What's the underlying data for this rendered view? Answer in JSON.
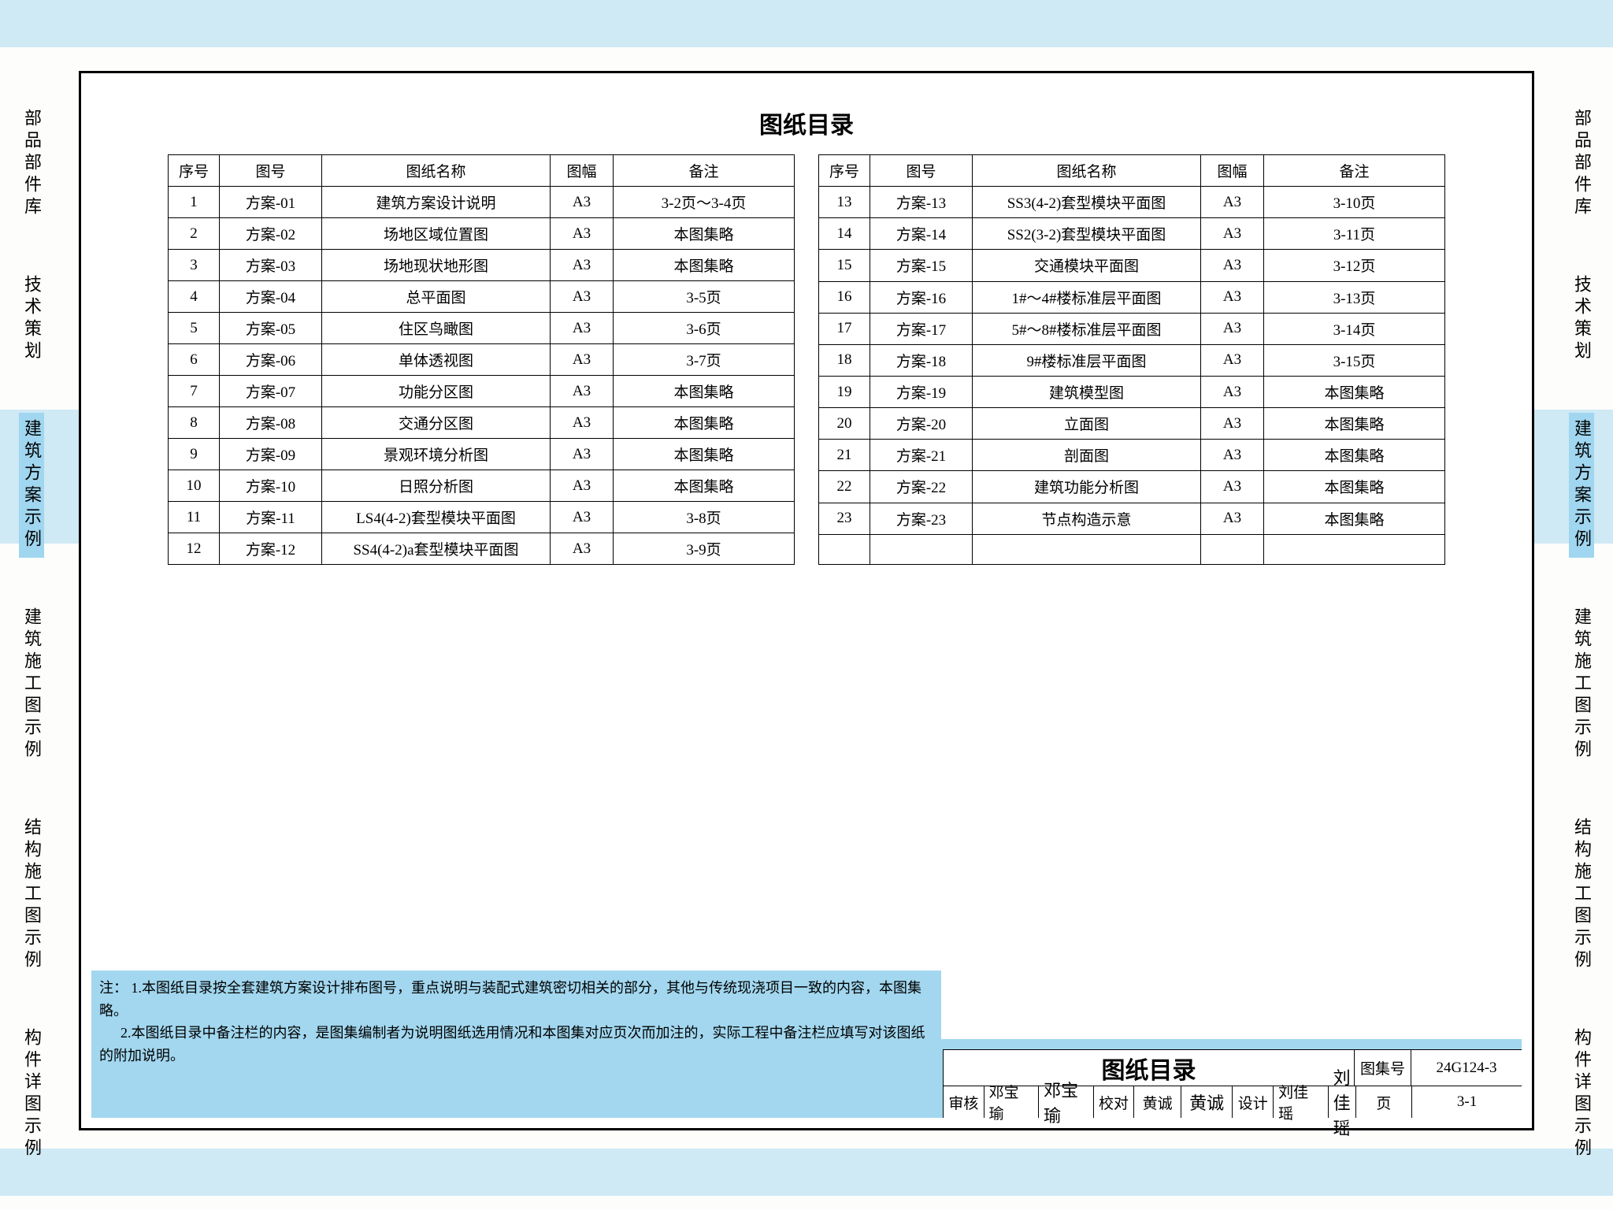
{
  "colors": {
    "band": "#cfe9f5",
    "tab_active": "#a0d6ef",
    "footnote_bg": "#a2d7ef",
    "border": "#000000",
    "paper": "#ffffff"
  },
  "side_tabs": [
    {
      "label": "部品部件库",
      "active": false
    },
    {
      "label": "技术策划",
      "active": false
    },
    {
      "label": "建筑方案示例",
      "active": true
    },
    {
      "label": "建筑施工图示例",
      "active": false
    },
    {
      "label": "结构施工图示例",
      "active": false
    },
    {
      "label": "构件详图示例",
      "active": false
    }
  ],
  "title": "图纸目录",
  "headers": {
    "seq": "序号",
    "code": "图号",
    "name": "图纸名称",
    "size": "图幅",
    "note": "备注"
  },
  "rows_left": [
    {
      "seq": "1",
      "code": "方案-01",
      "name": "建筑方案设计说明",
      "size": "A3",
      "note": "3-2页～3-4页"
    },
    {
      "seq": "2",
      "code": "方案-02",
      "name": "场地区域位置图",
      "size": "A3",
      "note": "本图集略"
    },
    {
      "seq": "3",
      "code": "方案-03",
      "name": "场地现状地形图",
      "size": "A3",
      "note": "本图集略"
    },
    {
      "seq": "4",
      "code": "方案-04",
      "name": "总平面图",
      "size": "A3",
      "note": "3-5页"
    },
    {
      "seq": "5",
      "code": "方案-05",
      "name": "住区鸟瞰图",
      "size": "A3",
      "note": "3-6页"
    },
    {
      "seq": "6",
      "code": "方案-06",
      "name": "单体透视图",
      "size": "A3",
      "note": "3-7页"
    },
    {
      "seq": "7",
      "code": "方案-07",
      "name": "功能分区图",
      "size": "A3",
      "note": "本图集略"
    },
    {
      "seq": "8",
      "code": "方案-08",
      "name": "交通分区图",
      "size": "A3",
      "note": "本图集略"
    },
    {
      "seq": "9",
      "code": "方案-09",
      "name": "景观环境分析图",
      "size": "A3",
      "note": "本图集略"
    },
    {
      "seq": "10",
      "code": "方案-10",
      "name": "日照分析图",
      "size": "A3",
      "note": "本图集略"
    },
    {
      "seq": "11",
      "code": "方案-11",
      "name": "LS4(4-2)套型模块平面图",
      "size": "A3",
      "note": "3-8页"
    },
    {
      "seq": "12",
      "code": "方案-12",
      "name": "SS4(4-2)a套型模块平面图",
      "size": "A3",
      "note": "3-9页"
    }
  ],
  "rows_right": [
    {
      "seq": "13",
      "code": "方案-13",
      "name": "SS3(4-2)套型模块平面图",
      "size": "A3",
      "note": "3-10页"
    },
    {
      "seq": "14",
      "code": "方案-14",
      "name": "SS2(3-2)套型模块平面图",
      "size": "A3",
      "note": "3-11页"
    },
    {
      "seq": "15",
      "code": "方案-15",
      "name": "交通模块平面图",
      "size": "A3",
      "note": "3-12页"
    },
    {
      "seq": "16",
      "code": "方案-16",
      "name": "1#～4#楼标准层平面图",
      "size": "A3",
      "note": "3-13页"
    },
    {
      "seq": "17",
      "code": "方案-17",
      "name": "5#～8#楼标准层平面图",
      "size": "A3",
      "note": "3-14页"
    },
    {
      "seq": "18",
      "code": "方案-18",
      "name": "9#楼标准层平面图",
      "size": "A3",
      "note": "3-15页"
    },
    {
      "seq": "19",
      "code": "方案-19",
      "name": "建筑模型图",
      "size": "A3",
      "note": "本图集略"
    },
    {
      "seq": "20",
      "code": "方案-20",
      "name": "立面图",
      "size": "A3",
      "note": "本图集略"
    },
    {
      "seq": "21",
      "code": "方案-21",
      "name": "剖面图",
      "size": "A3",
      "note": "本图集略"
    },
    {
      "seq": "22",
      "code": "方案-22",
      "name": "建筑功能分析图",
      "size": "A3",
      "note": "本图集略"
    },
    {
      "seq": "23",
      "code": "方案-23",
      "name": "节点构造示意",
      "size": "A3",
      "note": "本图集略"
    },
    {
      "seq": "",
      "code": "",
      "name": "",
      "size": "",
      "note": ""
    }
  ],
  "footnotes": {
    "lead": "注：",
    "n1": "1.本图纸目录按全套建筑方案设计排布图号，重点说明与装配式建筑密切相关的部分，其他与传统现浇项目一致的内容，本图集略。",
    "n2": "2.本图纸目录中备注栏的内容，是图集编制者为说明图纸选用情况和本图集对应页次而加注的，实际工程中备注栏应填写对该图纸的附加说明。"
  },
  "titleblock": {
    "main": "图纸目录",
    "setno_label": "图集号",
    "setno": "24G124-3",
    "check_label": "审核",
    "check_name": "邓宝瑜",
    "check_sig": "邓宝瑜",
    "proof_label": "校对",
    "proof_name": "黄诚",
    "proof_sig": "黄诚",
    "design_label": "设计",
    "design_name": "刘佳瑶",
    "design_sig": "刘佳瑶",
    "page_label": "页",
    "page": "3-1"
  }
}
